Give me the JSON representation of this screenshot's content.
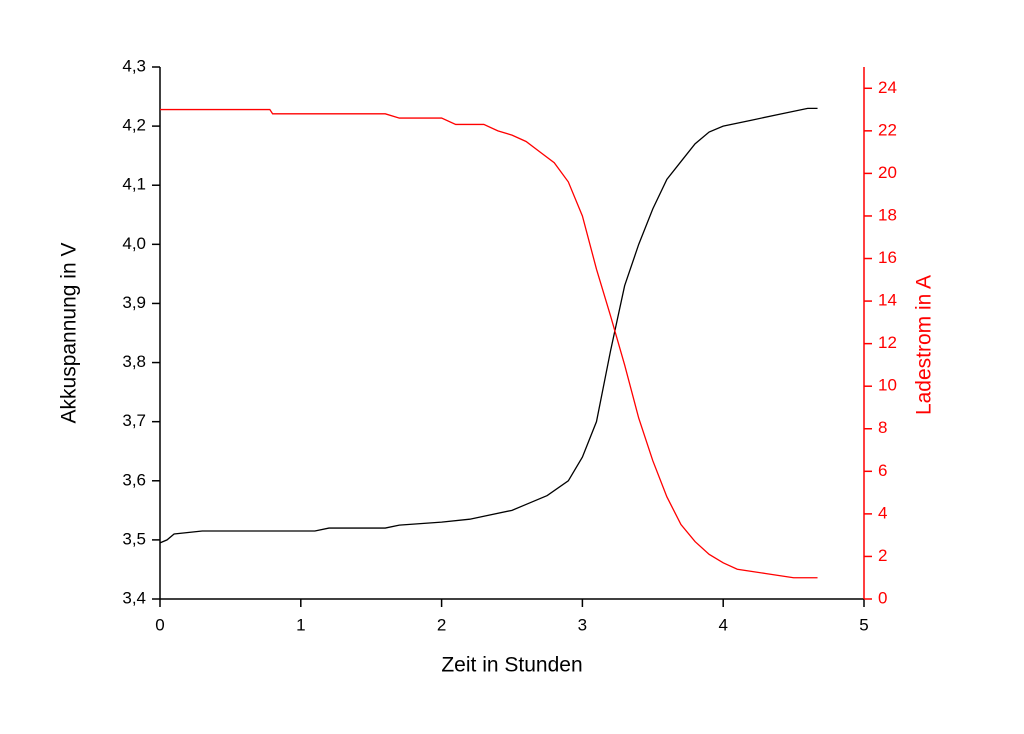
{
  "chart_data": {
    "type": "line",
    "xlabel": "Zeit in Stunden",
    "ylabel": "Akkuspannung in V",
    "y2label": "Ladestrom in A",
    "xlim": [
      0,
      5
    ],
    "xticks": [
      0,
      1,
      2,
      3,
      4,
      5
    ],
    "ylim": [
      3.4,
      4.3
    ],
    "yticks": [
      {
        "value": 3.4,
        "label": "3,4"
      },
      {
        "value": 3.5,
        "label": "3,5"
      },
      {
        "value": 3.6,
        "label": "3,6"
      },
      {
        "value": 3.7,
        "label": "3,7"
      },
      {
        "value": 3.8,
        "label": "3,8"
      },
      {
        "value": 3.9,
        "label": "3,9"
      },
      {
        "value": 4.0,
        "label": "4,0"
      },
      {
        "value": 4.1,
        "label": "4,1"
      },
      {
        "value": 4.2,
        "label": "4,2"
      },
      {
        "value": 4.3,
        "label": "4,3"
      }
    ],
    "y2lim": [
      0,
      25
    ],
    "y2ticks": [
      0,
      2,
      4,
      6,
      8,
      10,
      12,
      14,
      16,
      18,
      20,
      22,
      24
    ],
    "y2color": "#ff0000",
    "series": [
      {
        "color": "#000000",
        "x": [
          0,
          0.05,
          0.1,
          0.3,
          1.1,
          1.2,
          1.6,
          1.7,
          2.0,
          2.2,
          2.3,
          2.5,
          2.6,
          2.75,
          2.9,
          3.0,
          3.1,
          3.2,
          3.3,
          3.4,
          3.5,
          3.6,
          3.7,
          3.8,
          3.9,
          4.0,
          4.2,
          4.4,
          4.6,
          4.67
        ],
        "values": [
          3.495,
          3.5,
          3.51,
          3.515,
          3.515,
          3.52,
          3.52,
          3.525,
          3.53,
          3.535,
          3.54,
          3.55,
          3.56,
          3.575,
          3.6,
          3.64,
          3.7,
          3.82,
          3.93,
          4.0,
          4.06,
          4.11,
          4.14,
          4.17,
          4.19,
          4.2,
          4.21,
          4.22,
          4.23,
          4.23
        ]
      },
      {
        "color": "#ff0000",
        "axis": "y2",
        "x": [
          0,
          0.78,
          0.8,
          1.6,
          1.7,
          2.0,
          2.1,
          2.3,
          2.4,
          2.5,
          2.6,
          2.7,
          2.8,
          2.9,
          3.0,
          3.1,
          3.2,
          3.3,
          3.4,
          3.5,
          3.6,
          3.7,
          3.8,
          3.9,
          4.0,
          4.1,
          4.2,
          4.3,
          4.4,
          4.5,
          4.67
        ],
        "values": [
          23.0,
          23.0,
          22.8,
          22.8,
          22.6,
          22.6,
          22.3,
          22.3,
          22.0,
          21.8,
          21.5,
          21.0,
          20.5,
          19.6,
          18.0,
          15.5,
          13.3,
          11.0,
          8.5,
          6.5,
          4.8,
          3.5,
          2.7,
          2.1,
          1.7,
          1.4,
          1.3,
          1.2,
          1.1,
          1.0,
          1.0
        ]
      }
    ]
  }
}
